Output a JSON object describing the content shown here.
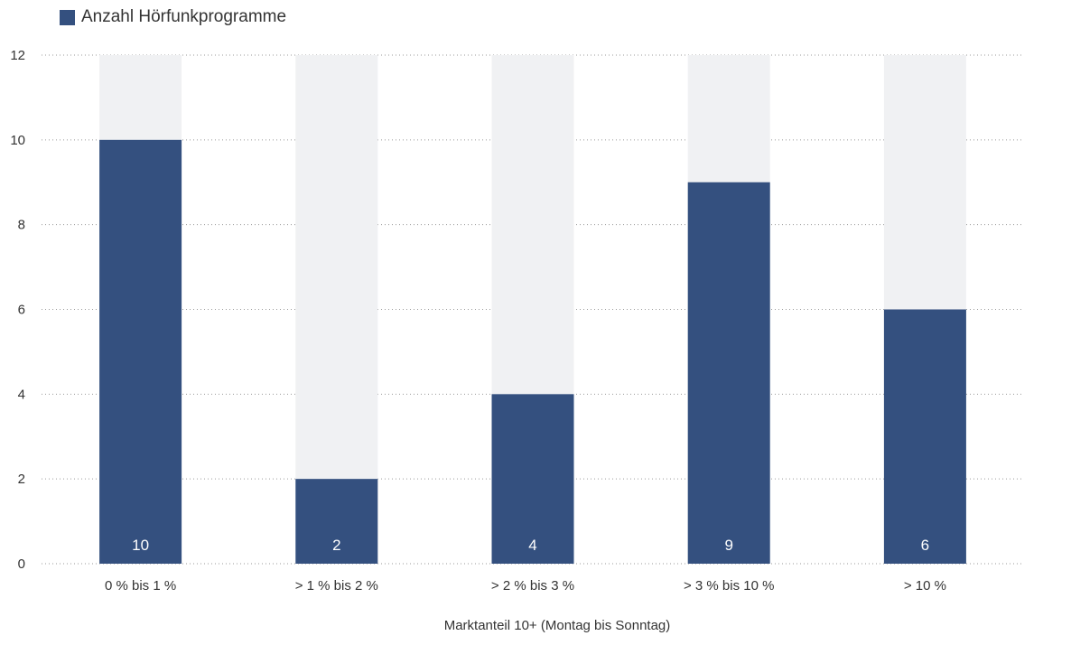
{
  "chart_data": {
    "type": "bar",
    "title": "",
    "xlabel": "Marktanteil 10+ (Montag bis Sonntag)",
    "ylabel": "",
    "ylim": [
      0,
      12
    ],
    "yticks": [
      0,
      2,
      4,
      6,
      8,
      10,
      12
    ],
    "grid": true,
    "legend_position": "top-left",
    "categories": [
      "0 % bis 1 %",
      "> 1 % bis 2 %",
      "> 2 % bis 3 %",
      "> 3 % bis 10 %",
      "> 10 %"
    ],
    "series": [
      {
        "name": "Anzahl Hörfunkprogramme",
        "values": [
          10,
          2,
          4,
          9,
          6
        ],
        "labels": [
          "10",
          "2",
          "4",
          "9",
          "6"
        ],
        "color": "#34507f"
      }
    ],
    "background_bar_color": "#f0f1f3"
  }
}
